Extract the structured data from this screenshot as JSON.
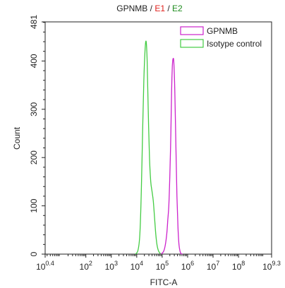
{
  "chart_data": {
    "type": "histogram",
    "title": [
      {
        "text": "GPNMB",
        "color": "#222222"
      },
      {
        "text": " / ",
        "color": "#222222"
      },
      {
        "text": "E1",
        "color": "#e0201b"
      },
      {
        "text": " / ",
        "color": "#222222"
      },
      {
        "text": "E2",
        "color": "#1e8c1e"
      }
    ],
    "xlabel": "FITC-A",
    "ylabel": "Count",
    "x_scale": "log10",
    "xlim": [
      0.4,
      9.3
    ],
    "ylim": [
      0,
      481
    ],
    "x_ticks": [
      {
        "base": "10",
        "exp": "0.4",
        "value": 0.4
      },
      {
        "base": "10",
        "exp": "2",
        "value": 2
      },
      {
        "base": "10",
        "exp": "3",
        "value": 3
      },
      {
        "base": "10",
        "exp": "4",
        "value": 4
      },
      {
        "base": "10",
        "exp": "5",
        "value": 5
      },
      {
        "base": "10",
        "exp": "6",
        "value": 6
      },
      {
        "base": "10",
        "exp": "7",
        "value": 7
      },
      {
        "base": "10",
        "exp": "8",
        "value": 8
      },
      {
        "base": "10",
        "exp": "9.3",
        "value": 9.3
      }
    ],
    "y_ticks": [
      {
        "label": "0",
        "value": 0
      },
      {
        "label": "100",
        "value": 100
      },
      {
        "label": "200",
        "value": 200
      },
      {
        "label": "300",
        "value": 300
      },
      {
        "label": "400",
        "value": 400
      },
      {
        "label": "481",
        "value": 481
      }
    ],
    "legend_position": "top-right",
    "series": [
      {
        "name": "GPNMB",
        "color": "#cc22cc",
        "x_log10": [
          4.95,
          5.05,
          5.12,
          5.18,
          5.22,
          5.26,
          5.3,
          5.34,
          5.37,
          5.4,
          5.43,
          5.46,
          5.5,
          5.54,
          5.58,
          5.62,
          5.66,
          5.7,
          5.74,
          5.8
        ],
        "y": [
          0,
          5,
          18,
          42,
          70,
          100,
          160,
          250,
          340,
          390,
          405,
          395,
          330,
          220,
          120,
          55,
          20,
          6,
          1,
          0
        ]
      },
      {
        "name": "Isotype control",
        "color": "#44cc44",
        "x_log10": [
          3.95,
          4.05,
          4.12,
          4.18,
          4.23,
          4.28,
          4.33,
          4.37,
          4.41,
          4.45,
          4.5,
          4.55,
          4.6,
          4.65,
          4.7,
          4.75,
          4.8,
          4.86,
          4.93,
          5.0
        ],
        "y": [
          0,
          8,
          40,
          130,
          250,
          360,
          425,
          440,
          400,
          300,
          200,
          150,
          130,
          110,
          75,
          40,
          18,
          6,
          1,
          0
        ]
      }
    ]
  }
}
